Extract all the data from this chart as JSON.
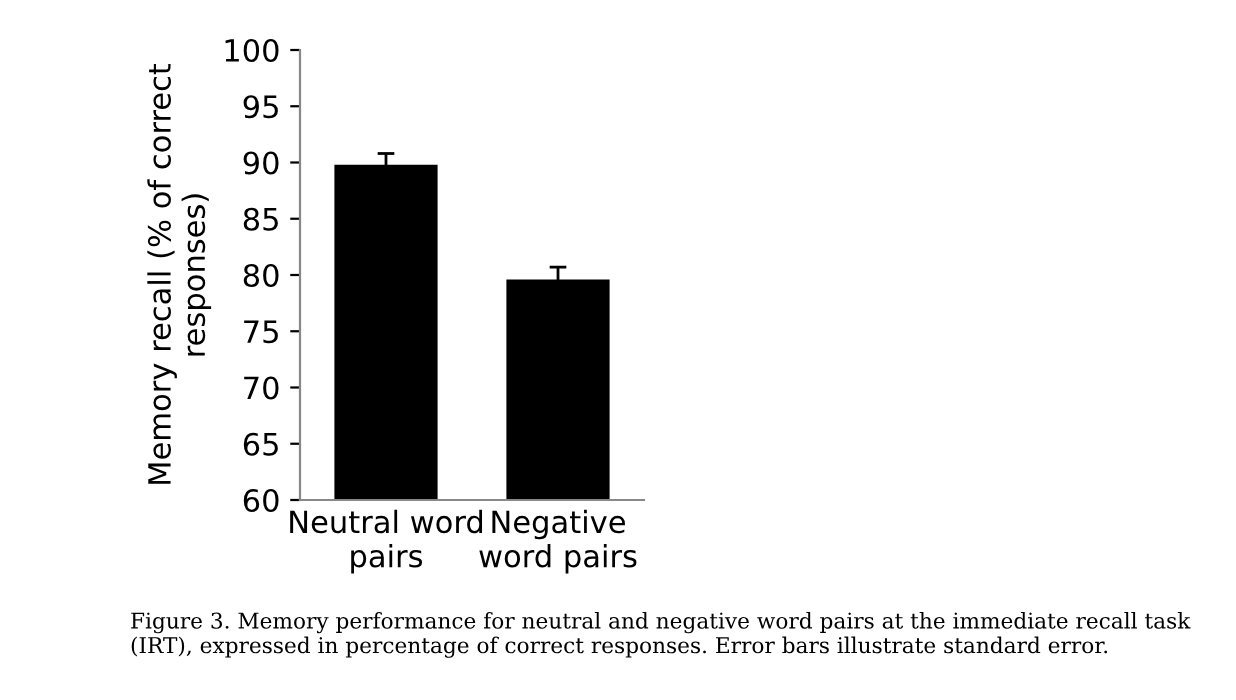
{
  "chart_data": {
    "type": "bar",
    "categories": [
      "Neutral word pairs",
      "Negative word pairs"
    ],
    "values": [
      89.8,
      79.6
    ],
    "errors": [
      1.0,
      1.1
    ],
    "color": "#000000",
    "ylabel": "Memory recall (% of correct responses)",
    "ylim": [
      60,
      100
    ],
    "yticks": [
      60,
      65,
      70,
      75,
      80,
      85,
      90,
      95,
      100
    ],
    "grid": false,
    "legend": false,
    "annotations": [
      "Figure 3. Memory performance for neutral and negative word pairs at the immediate recall task (IRT), expressed in percentage of correct responses. Error bars illustrate standard error."
    ]
  }
}
